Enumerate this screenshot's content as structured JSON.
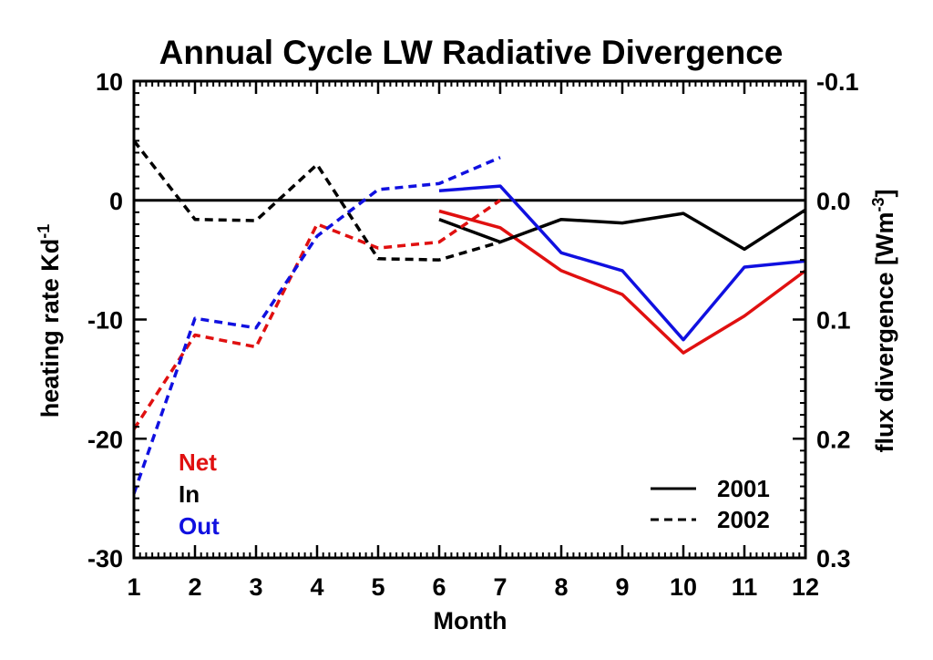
{
  "chart_data": {
    "type": "line",
    "title": "Annual Cycle LW Radiative Divergence",
    "xlabel": "Month",
    "ylabel_left": "heating rate Kd",
    "ylabel_left_superscript": "-1",
    "ylabel_right": "flux divergence [Wm",
    "ylabel_right_superscript": "-3",
    "ylabel_right_suffix": "]",
    "xlim": [
      1,
      12
    ],
    "ylim_left": [
      -30,
      10
    ],
    "ylim_right": [
      0.3,
      -0.1
    ],
    "x_ticks": [
      "1",
      "2",
      "3",
      "4",
      "5",
      "6",
      "7",
      "8",
      "9",
      "10",
      "11",
      "12"
    ],
    "y_ticks_left": [
      "10",
      "0",
      "-10",
      "-20",
      "-30"
    ],
    "y_ticks_right": [
      "-0.1",
      "0.0",
      "0.1",
      "0.2",
      "0.3"
    ],
    "zero_line": 0,
    "grid": false,
    "color_legend": {
      "position": "bottom-left",
      "entries": [
        {
          "label": "Net",
          "color": "#e01010"
        },
        {
          "label": "In",
          "color": "#000000"
        },
        {
          "label": "Out",
          "color": "#1010e0"
        }
      ]
    },
    "style_legend": {
      "position": "bottom-right",
      "entries": [
        {
          "label": "2001",
          "dash": "solid"
        },
        {
          "label": "2002",
          "dash": "dashed"
        }
      ]
    },
    "series": [
      {
        "name": "Net 2001",
        "color": "#e01010",
        "dash": "solid",
        "x": [
          6,
          7,
          8,
          9,
          10,
          11,
          12
        ],
        "y": [
          -0.9,
          -2.3,
          -5.9,
          -7.9,
          -12.8,
          -9.7,
          -5.9
        ]
      },
      {
        "name": "In 2001",
        "color": "#000000",
        "dash": "solid",
        "x": [
          6,
          7,
          8,
          9,
          10,
          11,
          12
        ],
        "y": [
          -1.6,
          -3.5,
          -1.6,
          -1.9,
          -1.1,
          -4.1,
          -0.8
        ]
      },
      {
        "name": "Out 2001",
        "color": "#1010e0",
        "dash": "solid",
        "x": [
          6,
          7,
          8,
          9,
          10,
          11,
          12
        ],
        "y": [
          0.8,
          1.2,
          -4.4,
          -5.9,
          -11.7,
          -5.6,
          -5.1
        ]
      },
      {
        "name": "Net 2002",
        "color": "#e01010",
        "dash": "dashed",
        "x": [
          1,
          2,
          3,
          4,
          5,
          6,
          7
        ],
        "y": [
          -19.2,
          -11.3,
          -12.3,
          -2.0,
          -4.0,
          -3.5,
          0.0
        ]
      },
      {
        "name": "In 2002",
        "color": "#000000",
        "dash": "dashed",
        "x": [
          1,
          2,
          3,
          4,
          5,
          6,
          7
        ],
        "y": [
          5.0,
          -1.6,
          -1.7,
          3.0,
          -4.9,
          -5.0,
          -3.5
        ]
      },
      {
        "name": "Out 2002",
        "color": "#1010e0",
        "dash": "dashed",
        "x": [
          1,
          2,
          3,
          4,
          5,
          6,
          7
        ],
        "y": [
          -24.6,
          -9.9,
          -10.7,
          -3.0,
          0.9,
          1.4,
          3.6
        ]
      }
    ]
  }
}
